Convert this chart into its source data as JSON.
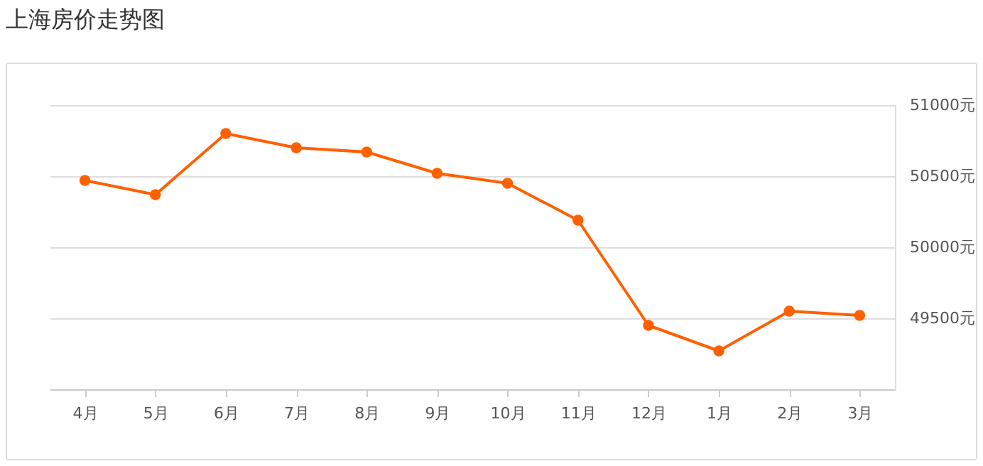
{
  "chart_data": {
    "type": "line",
    "title": "上海房价走势图",
    "categories": [
      "4月",
      "5月",
      "6月",
      "7月",
      "8月",
      "9月",
      "10月",
      "11月",
      "12月",
      "1月",
      "2月",
      "3月"
    ],
    "series": [
      {
        "color": "#ff6000",
        "values": [
          50470,
          50370,
          50800,
          50700,
          50670,
          50520,
          50450,
          50190,
          49450,
          49270,
          49550,
          49520
        ]
      }
    ],
    "ylim": [
      49000,
      51000
    ],
    "yticks": [
      {
        "value": 49500,
        "label": "49500元"
      },
      {
        "value": 50000,
        "label": "50000元"
      },
      {
        "value": 50500,
        "label": "50500元"
      },
      {
        "value": 51000,
        "label": "51000元"
      }
    ],
    "grid": "y",
    "marker": "circle",
    "line_style": "solid",
    "legend": false
  }
}
